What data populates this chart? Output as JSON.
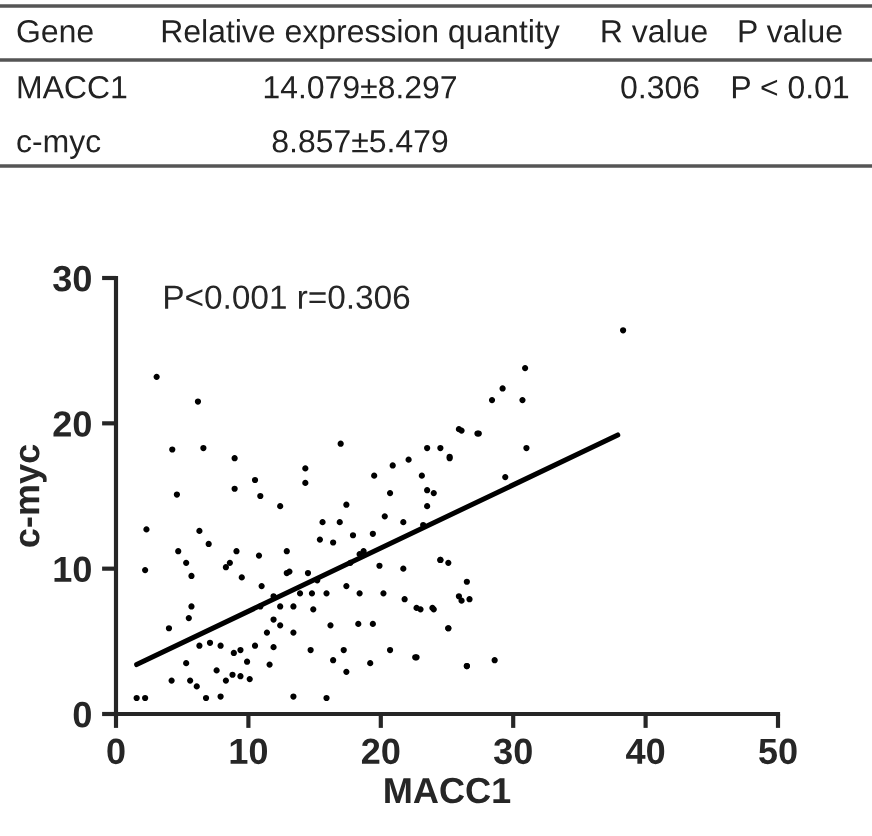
{
  "chart_data": {
    "type": "scatter",
    "xlabel": "MACC1",
    "ylabel": "c-myc",
    "xlim": [
      0,
      50
    ],
    "xticks": [
      0,
      10,
      20,
      30,
      40,
      50
    ],
    "ylim": [
      0,
      30
    ],
    "yticks": [
      0,
      10,
      20,
      30
    ],
    "grid": false,
    "legend": false,
    "annotations": [
      "P<0.001 r=0.306",
      "Gene",
      "Relative expression quantity",
      "R value",
      "P value",
      "MACC1",
      "14.079±8.297",
      "0.306",
      "P < 0.01",
      "c-myc",
      "8.857±5.479"
    ],
    "series": [
      {
        "marker": "circle",
        "color": "#000000",
        "x": [
          3.07,
          6.19,
          4.25,
          6.6,
          4.6,
          2.3,
          2.2,
          4.7,
          6.3,
          7.0,
          5.3,
          5.7,
          4.0,
          5.5,
          5.7,
          8.96,
          8.96,
          10.5,
          10.9,
          12.4,
          8.3,
          8.6,
          9.1,
          9.5,
          10.8,
          11.0,
          12.9,
          13.1,
          14.3,
          14.3,
          16.97,
          15.6,
          16.9,
          17.4,
          19.5,
          20.7,
          20.9,
          22.1,
          23.5,
          24.5,
          25.2,
          25.9,
          27.3,
          23.1,
          23.5,
          20.3,
          21.7,
          19.4,
          17.9,
          15.4,
          16.4,
          18.7,
          17.7,
          21.7,
          24.5,
          25.1,
          12.9,
          14.5,
          15.2,
          13.9,
          14.8,
          15.9,
          12.4,
          13.4,
          14.9,
          17.4,
          18.4,
          20.2,
          21.8,
          22.7,
          23.9,
          25.9,
          26.7,
          19.4,
          18.3,
          16.2,
          25.1,
          26.5,
          22.6,
          20.7,
          19.2,
          17.4,
          17.2,
          16.4,
          14.7,
          13.4,
          12.4,
          11.4,
          11.9,
          10.5,
          9.4,
          8.9,
          7.9,
          7.1,
          6.3,
          5.3,
          4.2,
          5.6,
          6.1,
          6.8,
          7.9,
          8.3,
          9.4,
          10.1,
          7.6,
          8.8,
          9.9,
          11.6,
          13.4,
          15.9,
          1.56,
          2.2,
          10.9,
          11.9,
          11.9,
          18.4,
          19.9,
          38.3,
          30.9,
          29.2,
          30.7,
          28.4,
          31.0,
          27.4,
          26.1,
          29.4,
          24.5,
          26.5,
          26.1,
          25.1,
          28.6,
          26.5,
          22.7,
          24.0,
          23.0,
          23.5,
          23.2,
          24.0,
          25.2
        ],
        "values": [
          23.2,
          21.5,
          18.2,
          18.3,
          15.1,
          12.7,
          9.9,
          11.2,
          12.6,
          11.7,
          10.4,
          9.5,
          5.9,
          6.6,
          7.4,
          17.6,
          15.5,
          16.1,
          15.0,
          14.3,
          10.1,
          10.4,
          11.2,
          9.4,
          10.9,
          8.8,
          11.2,
          9.8,
          16.9,
          15.9,
          18.6,
          13.2,
          13.2,
          14.4,
          16.4,
          15.2,
          17.1,
          17.5,
          18.3,
          18.3,
          17.6,
          19.6,
          19.3,
          16.4,
          15.4,
          13.6,
          13.2,
          12.4,
          12.3,
          12.0,
          11.8,
          11.2,
          10.4,
          10.0,
          10.6,
          10.4,
          9.7,
          9.7,
          9.2,
          8.3,
          8.3,
          8.3,
          7.4,
          7.4,
          7.2,
          8.8,
          8.3,
          8.3,
          7.9,
          7.3,
          7.3,
          8.1,
          7.9,
          6.2,
          6.2,
          6.1,
          5.9,
          3.3,
          3.9,
          4.4,
          3.5,
          2.9,
          4.4,
          3.7,
          4.4,
          5.6,
          6.1,
          5.6,
          4.6,
          4.7,
          4.4,
          4.2,
          4.7,
          4.9,
          4.7,
          3.5,
          2.3,
          2.3,
          1.9,
          1.1,
          1.2,
          2.3,
          2.6,
          2.4,
          3.0,
          2.7,
          3.6,
          3.4,
          1.2,
          1.1,
          1.1,
          1.1,
          7.4,
          6.5,
          8.1,
          11.0,
          10.2,
          26.4,
          23.8,
          22.4,
          21.6,
          21.6,
          18.3,
          19.3,
          19.5,
          16.3,
          10.6,
          9.1,
          7.8,
          5.9,
          3.7,
          3.3,
          3.9,
          7.2,
          7.2,
          14.3,
          13.0,
          15.2,
          17.7
        ]
      },
      {
        "type": "line",
        "marker": "none",
        "color": "#000000",
        "x": [
          1.56,
          37.9
        ],
        "values": [
          3.4,
          19.2
        ]
      }
    ]
  }
}
